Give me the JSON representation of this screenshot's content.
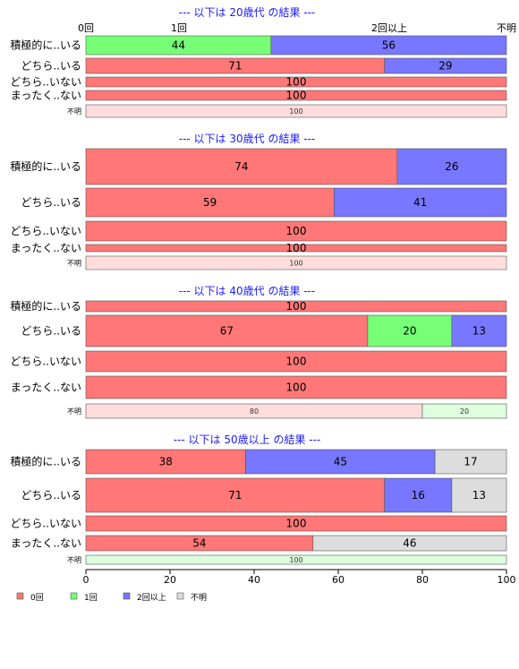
{
  "colors": {
    "zero": "#ff7777",
    "one": "#77ff77",
    "two_plus": "#7777ff",
    "unknown": "#dddddd",
    "title": "#1a1aff"
  },
  "top_labels": [
    "0回",
    "1回",
    "2回以上",
    "不明"
  ],
  "legend": [
    {
      "label": "0回",
      "color": "#ff7777"
    },
    {
      "label": "1回",
      "color": "#77ff77"
    },
    {
      "label": "2回以上",
      "color": "#7777ff"
    },
    {
      "label": "不明",
      "color": "#dddddd"
    }
  ],
  "chart_data": {
    "type": "bar",
    "orientation": "horizontal-stacked-percent",
    "xlim": [
      0,
      100
    ],
    "x_ticks": [
      0,
      20,
      40,
      60,
      80,
      100
    ],
    "categories_order": [
      "0回",
      "1回",
      "2回以上",
      "不明"
    ],
    "panels": [
      {
        "title": "--- 以下は 20歳代 の結果 ---",
        "rows": [
          {
            "label": "積極的に..いる",
            "values": [
              0,
              44,
              56,
              0
            ]
          },
          {
            "label": "どちら..いる",
            "values": [
              71,
              0,
              29,
              0
            ]
          },
          {
            "label": "どちら..いない",
            "values": [
              100,
              0,
              0,
              0
            ]
          },
          {
            "label": "まったく..ない",
            "values": [
              100,
              0,
              0,
              0
            ]
          },
          {
            "label": "不明",
            "values": [
              100,
              0,
              0,
              0
            ]
          }
        ]
      },
      {
        "title": "--- 以下は 30歳代 の結果 ---",
        "rows": [
          {
            "label": "積極的に..いる",
            "values": [
              74,
              0,
              26,
              0
            ]
          },
          {
            "label": "どちら..いる",
            "values": [
              59,
              0,
              41,
              0
            ]
          },
          {
            "label": "どちら..いない",
            "values": [
              100,
              0,
              0,
              0
            ]
          },
          {
            "label": "まったく..ない",
            "values": [
              100,
              0,
              0,
              0
            ]
          },
          {
            "label": "不明",
            "values": [
              100,
              0,
              0,
              0
            ]
          }
        ]
      },
      {
        "title": "--- 以下は 40歳代 の結果 ---",
        "rows": [
          {
            "label": "積極的に..いる",
            "values": [
              100,
              0,
              0,
              0
            ]
          },
          {
            "label": "どちら..いる",
            "values": [
              67,
              20,
              13,
              0
            ]
          },
          {
            "label": "どちら..いない",
            "values": [
              100,
              0,
              0,
              0
            ]
          },
          {
            "label": "まったく..ない",
            "values": [
              100,
              0,
              0,
              0
            ]
          },
          {
            "label": "不明",
            "values": [
              80,
              20,
              0,
              0
            ]
          }
        ]
      },
      {
        "title": "--- 以下は 50歳以上 の結果 ---",
        "rows": [
          {
            "label": "積極的に..いる",
            "values": [
              38,
              0,
              45,
              17
            ]
          },
          {
            "label": "どちら..いる",
            "values": [
              71,
              0,
              16,
              13
            ]
          },
          {
            "label": "どちら..いない",
            "values": [
              100,
              0,
              0,
              0
            ]
          },
          {
            "label": "まったく..ない",
            "values": [
              54,
              0,
              0,
              46
            ]
          },
          {
            "label": "不明",
            "values": [
              0,
              100,
              0,
              0
            ]
          }
        ]
      }
    ]
  }
}
